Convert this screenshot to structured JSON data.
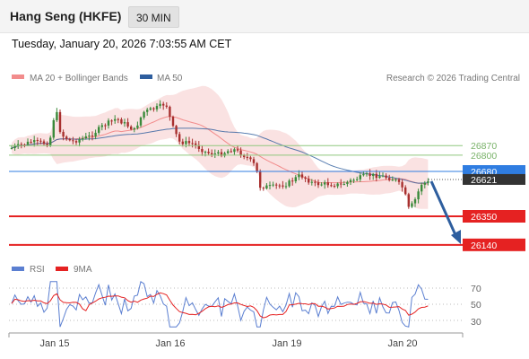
{
  "header": {
    "instrument": "Hang Seng (HKFE)",
    "timeframe": "30 MIN",
    "datetime": "Tuesday, January 20, 2026 7:03:55 AM CET"
  },
  "legend": {
    "ma20_label": "MA 20 + Bollinger Bands",
    "ma20_color": "#f28c8c",
    "ma50_label": "MA 50",
    "ma50_color": "#2e5e9e",
    "copyright": "Research © 2026 Trading Central"
  },
  "levels": {
    "resistance_2": "26870",
    "resistance_1": "26800",
    "pivot": "26680",
    "last_price": "26621",
    "support_1": "26350",
    "support_2": "26140",
    "pivot_color": "#2f7de1",
    "support_color": "#e52222",
    "resistance_color": "#8fc77e",
    "last_color": "#333333"
  },
  "rsi_legend": {
    "rsi_label": "RSI",
    "rsi_color": "#5b7fd1",
    "ma9_label": "9MA",
    "ma9_color": "#e52222"
  },
  "rsi_axis": [
    "70",
    "50",
    "30"
  ],
  "x_axis": {
    "dates": [
      "Jan 15",
      "Jan 16",
      "Jan 19",
      "Jan 20"
    ]
  },
  "chart_data": {
    "type": "candlestick",
    "price_axis_levels": [
      26870,
      26800,
      26680,
      26621,
      26350,
      26140
    ],
    "forecast": "down arrow from about 26621 toward 26140",
    "rsi_levels": [
      70,
      50,
      30
    ]
  }
}
